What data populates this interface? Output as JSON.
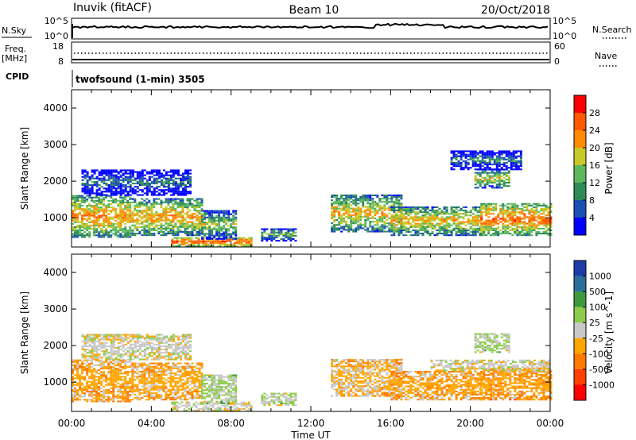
{
  "header": {
    "station": "Inuvik (fitACF)",
    "beam": "Beam 10",
    "date": "20/Oct/2018"
  },
  "aux_panels": {
    "nsky_label": "N.Sky",
    "nsky_ticks": [
      "10^5",
      "10^0"
    ],
    "nsearch_label": "N.Search",
    "nsearch_ticks": [
      "10^5",
      "10^0"
    ],
    "freq_label": "Freq.",
    "freq_unit": "[MHz]",
    "freq_ticks": [
      "18",
      "8"
    ],
    "nave_label": "Nave",
    "nave_ticks": [
      "60",
      "0"
    ],
    "cpid_label": "CPID",
    "cpid_text": "twofsound (1-min) 3505"
  },
  "colors": {
    "power_scale": [
      "#0000ff",
      "#1a4fb4",
      "#2e8b57",
      "#5cb85c",
      "#c8c828",
      "#ff8c00",
      "#ff5a00",
      "#ff0000"
    ],
    "velocity_scale": [
      "#1e3ca8",
      "#2c6e9a",
      "#3c9a3c",
      "#8ccc4a",
      "#c8c8c8",
      "#ffa500",
      "#ff7a00",
      "#ff4000",
      "#ff0000"
    ],
    "noise_line": "#000000"
  },
  "chart_data": [
    {
      "type": "heatmap",
      "name": "Power",
      "ylabel": "Slant Range [km]",
      "xlabel": "",
      "x_ticks": [
        "00:00",
        "04:00",
        "08:00",
        "12:00",
        "16:00",
        "20:00",
        "00:00"
      ],
      "xlim": [
        0,
        24
      ],
      "ylim": [
        200,
        4500
      ],
      "y_ticks": [
        1000,
        2000,
        3000,
        4000
      ],
      "colorbar_label": "Power [dB]",
      "colorbar_ticks": [
        "28",
        "24",
        "20",
        "16",
        "12",
        "8",
        "4"
      ],
      "colorbar_range": [
        0,
        30
      ],
      "echo_regions": [
        {
          "t0": 0.0,
          "t1": 3.0,
          "r0": 450,
          "r1": 1600,
          "level": 22
        },
        {
          "t0": 3.0,
          "t1": 6.5,
          "r0": 500,
          "r1": 1500,
          "level": 21
        },
        {
          "t0": 5.0,
          "t1": 9.0,
          "r0": 200,
          "r1": 450,
          "level": 26
        },
        {
          "t0": 6.5,
          "t1": 8.2,
          "r0": 400,
          "r1": 1200,
          "level": 16
        },
        {
          "t0": 9.5,
          "t1": 11.2,
          "r0": 350,
          "r1": 700,
          "level": 14
        },
        {
          "t0": 13.0,
          "t1": 16.5,
          "r0": 600,
          "r1": 1600,
          "level": 20
        },
        {
          "t0": 16.0,
          "t1": 20.5,
          "r0": 500,
          "r1": 1300,
          "level": 20
        },
        {
          "t0": 20.5,
          "t1": 24.0,
          "r0": 500,
          "r1": 1400,
          "level": 24
        },
        {
          "t0": 20.2,
          "t1": 22.0,
          "r0": 1800,
          "r1": 2300,
          "level": 18
        },
        {
          "t0": 19.0,
          "t1": 22.5,
          "r0": 2300,
          "r1": 2800,
          "level": 10
        },
        {
          "t0": 0.5,
          "t1": 6.0,
          "r0": 1600,
          "r1": 2300,
          "level": 9
        }
      ]
    },
    {
      "type": "heatmap",
      "name": "Velocity",
      "ylabel": "Slant Range [km]",
      "xlabel": "Time UT",
      "x_ticks": [
        "00:00",
        "04:00",
        "08:00",
        "12:00",
        "16:00",
        "20:00",
        "00:00"
      ],
      "xlim": [
        0,
        24
      ],
      "ylim": [
        200,
        4500
      ],
      "y_ticks": [
        1000,
        2000,
        3000,
        4000
      ],
      "colorbar_label": "Velocity [m s^-1]",
      "colorbar_ticks": [
        "1000",
        "500",
        "100",
        "25",
        "-25",
        "-100",
        "-500",
        "-1000"
      ],
      "colorbar_range": [
        -1250,
        1250
      ],
      "echo_regions": [
        {
          "t0": 0.0,
          "t1": 3.0,
          "r0": 450,
          "r1": 1600,
          "level": -300
        },
        {
          "t0": 3.0,
          "t1": 6.5,
          "r0": 500,
          "r1": 1500,
          "level": -250
        },
        {
          "t0": 5.0,
          "t1": 9.0,
          "r0": 200,
          "r1": 450,
          "level": 0
        },
        {
          "t0": 6.5,
          "t1": 8.2,
          "r0": 400,
          "r1": 1200,
          "level": 150
        },
        {
          "t0": 9.5,
          "t1": 11.2,
          "r0": 350,
          "r1": 700,
          "level": 120
        },
        {
          "t0": 13.0,
          "t1": 16.5,
          "r0": 600,
          "r1": 1600,
          "level": -200
        },
        {
          "t0": 16.0,
          "t1": 20.5,
          "r0": 500,
          "r1": 1300,
          "level": -300
        },
        {
          "t0": 20.5,
          "t1": 24.0,
          "r0": 500,
          "r1": 1400,
          "level": -350
        },
        {
          "t0": 18.0,
          "t1": 24.0,
          "r0": 1300,
          "r1": 1600,
          "level": 0
        },
        {
          "t0": 20.2,
          "t1": 22.0,
          "r0": 1800,
          "r1": 2300,
          "level": 150
        },
        {
          "t0": 0.5,
          "t1": 6.0,
          "r0": 1600,
          "r1": 2300,
          "level": 0
        }
      ]
    }
  ]
}
